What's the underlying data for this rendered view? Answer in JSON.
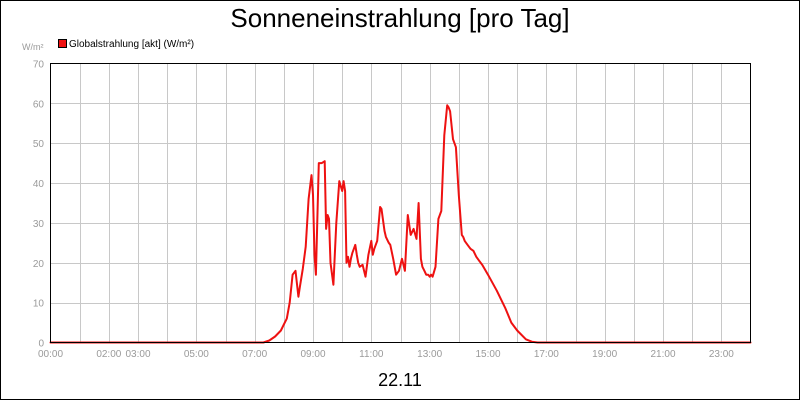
{
  "chart_data": {
    "type": "line",
    "title": "Sonneneinstrahlung [pro Tag]",
    "y_unit_label": "W/m²",
    "date_label": "22.11",
    "ylim": [
      0,
      70
    ],
    "y_ticks": [
      "0",
      "10",
      "20",
      "30",
      "40",
      "50",
      "60",
      "70"
    ],
    "xlim_hours": [
      0,
      24
    ],
    "x_tick_labels": [
      "00:00",
      "02:00",
      "03:00",
      "05:00",
      "07:00",
      "09:00",
      "11:00",
      "13:00",
      "15:00",
      "17:00",
      "19:00",
      "21:00",
      "23:00"
    ],
    "grid": true,
    "legend_position": "top-left",
    "series": [
      {
        "name": "Globalstrahlung [akt] (W/m²)",
        "color": "#ee1111",
        "x_hours": [
          0,
          7.3,
          7.5,
          7.7,
          7.9,
          8.0,
          8.1,
          8.2,
          8.3,
          8.4,
          8.5,
          8.55,
          8.65,
          8.75,
          8.85,
          8.95,
          9.0,
          9.05,
          9.1,
          9.2,
          9.3,
          9.4,
          9.45,
          9.5,
          9.55,
          9.6,
          9.7,
          9.8,
          9.9,
          10.0,
          10.05,
          10.1,
          10.15,
          10.2,
          10.25,
          10.3,
          10.35,
          10.45,
          10.5,
          10.55,
          10.6,
          10.7,
          10.8,
          10.9,
          11.0,
          11.05,
          11.1,
          11.2,
          11.3,
          11.35,
          11.45,
          11.5,
          11.6,
          11.65,
          11.75,
          11.85,
          11.95,
          12.05,
          12.15,
          12.25,
          12.35,
          12.45,
          12.55,
          12.62,
          12.7,
          12.75,
          12.82,
          12.88,
          12.95,
          13.0,
          13.05,
          13.1,
          13.2,
          13.3,
          13.4,
          13.5,
          13.6,
          13.65,
          13.7,
          13.8,
          13.9,
          14.0,
          14.1,
          14.15,
          14.2,
          14.3,
          14.4,
          14.5,
          14.6,
          14.7,
          14.8,
          15.0,
          15.3,
          15.6,
          15.8,
          16.0,
          16.3,
          16.5,
          16.7,
          16.85,
          17.0,
          24
        ],
        "values": [
          0,
          0,
          0.5,
          1.5,
          3,
          4.5,
          6,
          10,
          17,
          18,
          11.5,
          14,
          18.5,
          24,
          36,
          42,
          37,
          22,
          17,
          45,
          45,
          45.5,
          28.5,
          32,
          31,
          20,
          14.5,
          30,
          40.5,
          38,
          40.5,
          38,
          20,
          21.5,
          19,
          21,
          22.5,
          24.5,
          22,
          20,
          19,
          19.5,
          16.5,
          22,
          25.5,
          22,
          23.5,
          25.5,
          34,
          33.5,
          28,
          26.5,
          25,
          24.5,
          21,
          17,
          18,
          21,
          18,
          32,
          27,
          28.5,
          26,
          35,
          21,
          19,
          18,
          17,
          17,
          16.5,
          17,
          16.5,
          19,
          31,
          33,
          52,
          59.5,
          59,
          58,
          51,
          49,
          37,
          27,
          26.5,
          25.5,
          24.5,
          23.5,
          23,
          21.5,
          20.5,
          19.5,
          17,
          13,
          8.5,
          5,
          3,
          0.8,
          0.2,
          0,
          0,
          0,
          0
        ]
      }
    ]
  }
}
